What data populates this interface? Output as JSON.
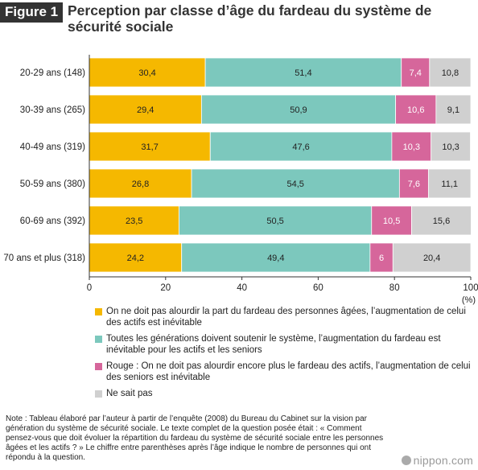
{
  "header": {
    "figure_label": "Figure 1",
    "title": "Perception par classe d’âge du fardeau du système de sécurité sociale"
  },
  "chart_data": {
    "type": "bar",
    "orientation": "horizontal",
    "stacked": true,
    "categories": [
      "20-29 ans (148)",
      "30-39 ans (265)",
      "40-49 ans (319)",
      "50-59 ans (380)",
      "60-69 ans (392)",
      "70 ans et plus (318)"
    ],
    "series": [
      {
        "name": "On ne doit pas alourdir la part du fardeau des personnes âgées, l’augmentation de celui des actifs est inévitable",
        "color": "#f5b800",
        "values": [
          30.4,
          29.4,
          31.7,
          26.8,
          23.5,
          24.2
        ],
        "labels": [
          "30,4",
          "29,4",
          "31,7",
          "26,8",
          "23,5",
          "24,2"
        ]
      },
      {
        "name": "Toutes les générations doivent soutenir le système, l’augmentation du fardeau est inévitable pour les actifs et les seniors",
        "color": "#7cc8bd",
        "values": [
          51.4,
          50.9,
          47.6,
          54.5,
          50.5,
          49.4
        ],
        "labels": [
          "51,4",
          "50,9",
          "47,6",
          "54,5",
          "50,5",
          "49,4"
        ]
      },
      {
        "name": "Rouge : On ne doit pas alourdir encore plus le fardeau des actifs, l’augmentation de celui des seniors est inévitable",
        "color": "#d6669b",
        "values": [
          7.4,
          10.6,
          10.3,
          7.6,
          10.5,
          6
        ],
        "labels": [
          "7,4",
          "10,6",
          "10,3",
          "7,6",
          "10,5",
          "6"
        ]
      },
      {
        "name": "Ne sait pas",
        "color": "#d0d0d0",
        "values": [
          10.8,
          9.1,
          10.3,
          11.1,
          15.6,
          20.4
        ],
        "labels": [
          "10,8",
          "9,1",
          "10,3",
          "11,1",
          "15,6",
          "20,4"
        ]
      }
    ],
    "xlim": [
      0,
      100
    ],
    "xticks": [
      "0",
      "20",
      "40",
      "60",
      "80",
      "100"
    ],
    "xunit": "(%)",
    "grid": false,
    "legend_position": "bottom"
  },
  "note": "Note : Tableau élaboré par l’auteur à partir de l’enquête (2008) du Bureau du Cabinet sur la vision par génération du système de sécurité sociale. Le texte complet de la question posée était : « Comment pensez-vous que doit évoluer la répartition du fardeau du système de sécurité sociale entre les personnes âgées et les actifs ? » Le chiffre entre parenthèses après l’âge indique le nombre de personnes qui ont répondu à la question.",
  "brand": "nippon.com"
}
